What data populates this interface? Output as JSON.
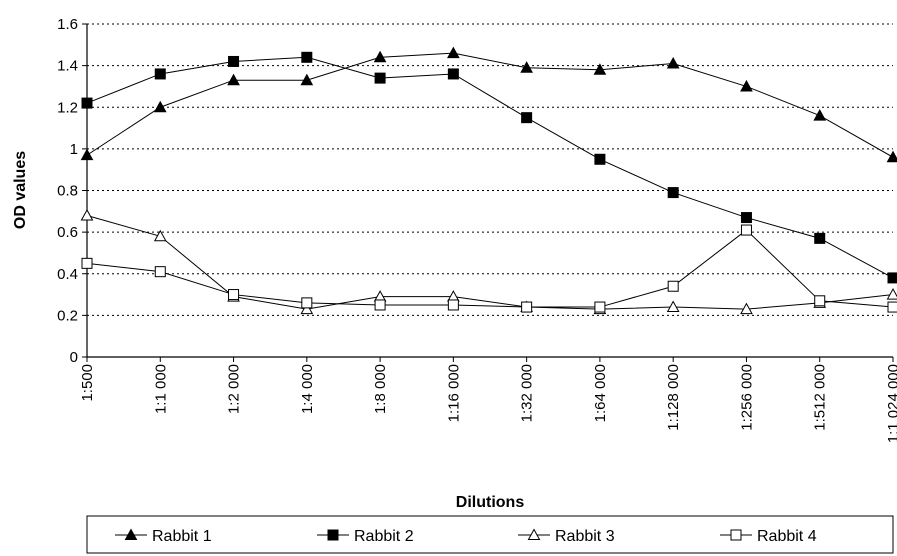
{
  "chart_data": {
    "type": "line",
    "xlabel": "Dilutions",
    "ylabel": "OD values",
    "categories": [
      "1:500",
      "1:1 000",
      "1:2 000",
      "1:4 000",
      "1:8 000",
      "1:16 000",
      "1:32 000",
      "1:64 000",
      "1:128 000",
      "1:256 000",
      "1:512 000",
      "1:1 024 000"
    ],
    "ylim": [
      0,
      1.6
    ],
    "yticks": [
      "0",
      "0.2",
      "0.4",
      "0.6",
      "0.8",
      "1",
      "1.2",
      "1.4",
      "1.6"
    ],
    "grid": "horizontal dotted",
    "legend_position": "bottom",
    "series": [
      {
        "name": "Rabbit 1",
        "marker": "triangle-filled",
        "values": [
          0.97,
          1.2,
          1.33,
          1.33,
          1.44,
          1.46,
          1.39,
          1.38,
          1.41,
          1.3,
          1.16,
          0.96
        ]
      },
      {
        "name": "Rabbit 2",
        "marker": "square-filled",
        "values": [
          1.22,
          1.36,
          1.42,
          1.44,
          1.34,
          1.36,
          1.15,
          0.95,
          0.79,
          0.67,
          0.57,
          0.38
        ]
      },
      {
        "name": "Rabbit 3",
        "marker": "triangle-open",
        "values": [
          0.68,
          0.58,
          0.29,
          0.23,
          0.29,
          0.29,
          0.24,
          0.23,
          0.24,
          0.23,
          0.26,
          0.3
        ]
      },
      {
        "name": "Rabbit 4",
        "marker": "square-open",
        "values": [
          0.45,
          0.41,
          0.3,
          0.26,
          0.25,
          0.25,
          0.24,
          0.24,
          0.34,
          0.61,
          0.27,
          0.24
        ]
      }
    ]
  }
}
